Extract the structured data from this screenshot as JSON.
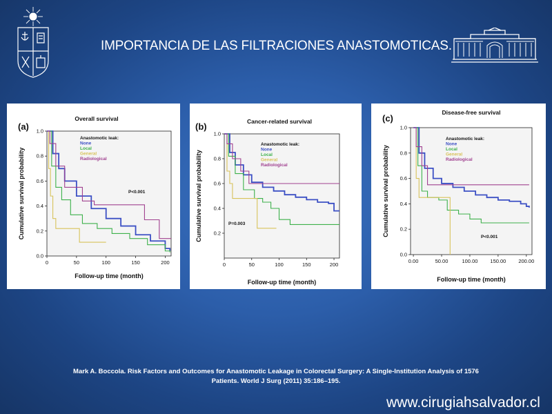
{
  "slide": {
    "title": "IMPORTANCIA DE LAS FILTRACIONES ANASTOMOTICAS.",
    "citation_line1": "Mark A. Boccola. Risk Factors and Outcomes for Anastomotic Leakage in Colorectal Surgery: A Single-Institution Analysis of 1576",
    "citation_line2": "Patients. World J Surg (2011) 35:186–195.",
    "website": "www.cirugiahsalvador.cl"
  },
  "colors": {
    "none": "#3b4fc4",
    "local": "#3cb04a",
    "general": "#d8c25a",
    "radiological": "#a0408f"
  },
  "chart_data": [
    {
      "type": "line",
      "panel_label": "(a)",
      "title": "Overall survival",
      "xlabel": "Follow-up time (month)",
      "ylabel": "Cumulative survival probability",
      "xlim": [
        0,
        210
      ],
      "ylim": [
        0,
        1.0
      ],
      "xticks": [
        0,
        50,
        100,
        150,
        200
      ],
      "xtick_labels": [
        "0",
        "50",
        "100",
        "150",
        "200"
      ],
      "yticks": [
        0.0,
        0.2,
        0.4,
        0.6,
        0.8,
        1.0
      ],
      "ytick_labels": [
        "0.0",
        "0.2",
        "0.4",
        "0.6",
        "0.8",
        "1.0"
      ],
      "legend_title": "Anastomotic leak:",
      "legend_position": "upper-center",
      "annotation": "P<0.001",
      "series": [
        {
          "name": "None",
          "x": [
            0,
            10,
            20,
            30,
            50,
            75,
            100,
            125,
            150,
            175,
            200,
            208
          ],
          "y": [
            1.0,
            0.82,
            0.7,
            0.6,
            0.48,
            0.38,
            0.3,
            0.24,
            0.17,
            0.12,
            0.06,
            0.04
          ]
        },
        {
          "name": "Local",
          "x": [
            0,
            8,
            15,
            25,
            40,
            60,
            85,
            110,
            140,
            170,
            200,
            208
          ],
          "y": [
            1.0,
            0.72,
            0.55,
            0.45,
            0.33,
            0.26,
            0.22,
            0.18,
            0.14,
            0.09,
            0.04,
            0.03
          ]
        },
        {
          "name": "General",
          "x": [
            0,
            3,
            6,
            10,
            15,
            35,
            55,
            70,
            100
          ],
          "y": [
            1.0,
            0.7,
            0.48,
            0.3,
            0.22,
            0.22,
            0.11,
            0.11,
            0.11
          ]
        },
        {
          "name": "Radiological",
          "x": [
            0,
            5,
            15,
            30,
            60,
            80,
            100,
            130,
            165,
            190,
            210
          ],
          "y": [
            1.0,
            0.9,
            0.72,
            0.55,
            0.44,
            0.41,
            0.41,
            0.41,
            0.29,
            0.14,
            0.14
          ]
        }
      ]
    },
    {
      "type": "line",
      "panel_label": "(b)",
      "title": "Cancer-related survival",
      "xlabel": "Follow-up time (month)",
      "ylabel": "Cumulative survival probability",
      "xlim": [
        0,
        210
      ],
      "ylim": [
        0.0,
        1.0
      ],
      "xticks": [
        0,
        50,
        100,
        150,
        200
      ],
      "xtick_labels": [
        "0",
        "50",
        "100",
        "150",
        "200"
      ],
      "yticks": [
        0.2,
        0.4,
        0.6,
        0.8,
        1.0
      ],
      "ytick_labels": [
        "0.2",
        "0.4",
        "0.6",
        "0.8",
        "1.0"
      ],
      "legend_title": "Anastomotic leak:",
      "legend_position": "upper-center",
      "annotation": "P=0.003",
      "series": [
        {
          "name": "None",
          "x": [
            0,
            10,
            20,
            35,
            50,
            70,
            90,
            110,
            130,
            150,
            170,
            190,
            200,
            210
          ],
          "y": [
            1.0,
            0.85,
            0.75,
            0.67,
            0.61,
            0.57,
            0.54,
            0.51,
            0.49,
            0.47,
            0.45,
            0.44,
            0.38,
            0.38
          ]
        },
        {
          "name": "Local",
          "x": [
            0,
            8,
            20,
            35,
            55,
            70,
            85,
            100,
            120,
            210
          ],
          "y": [
            1.0,
            0.82,
            0.68,
            0.55,
            0.48,
            0.45,
            0.4,
            0.31,
            0.27,
            0.27
          ]
        },
        {
          "name": "General",
          "x": [
            0,
            5,
            10,
            15,
            50,
            60,
            95
          ],
          "y": [
            1.0,
            0.7,
            0.6,
            0.48,
            0.48,
            0.24,
            0.24
          ]
        },
        {
          "name": "Radiological",
          "x": [
            0,
            5,
            15,
            30,
            45,
            210
          ],
          "y": [
            1.0,
            0.92,
            0.8,
            0.7,
            0.6,
            0.6
          ]
        }
      ]
    },
    {
      "type": "line",
      "panel_label": "(c)",
      "title": "Disease-free survival",
      "xlabel": "Follow-up time (month)",
      "ylabel": "Cumulative survival probability",
      "xlim": [
        -5,
        210
      ],
      "ylim": [
        0.0,
        1.0
      ],
      "xticks": [
        0,
        50,
        100,
        150,
        200
      ],
      "xtick_labels": [
        "0.00",
        "50.00",
        "100.00",
        "150.00",
        "200.00"
      ],
      "yticks": [
        0.0,
        0.2,
        0.4,
        0.6,
        0.8,
        1.0
      ],
      "ytick_labels": [
        "0.0",
        "0.2",
        "0.4",
        "0.6",
        "0.8",
        "1.0"
      ],
      "legend_title": "Anastomotic leak:",
      "legend_position": "upper-center",
      "annotation": "P<0.001",
      "series": [
        {
          "name": "None",
          "x": [
            0,
            10,
            20,
            35,
            50,
            70,
            90,
            110,
            130,
            150,
            170,
            190,
            200,
            205
          ],
          "y": [
            1.0,
            0.8,
            0.68,
            0.6,
            0.56,
            0.53,
            0.5,
            0.47,
            0.45,
            0.43,
            0.42,
            0.4,
            0.38,
            0.37
          ]
        },
        {
          "name": "Local",
          "x": [
            0,
            8,
            15,
            25,
            45,
            60,
            80,
            100,
            120,
            205
          ],
          "y": [
            1.0,
            0.7,
            0.5,
            0.45,
            0.43,
            0.35,
            0.32,
            0.28,
            0.25,
            0.25
          ]
        },
        {
          "name": "General",
          "x": [
            0,
            5,
            10,
            60,
            65,
            65
          ],
          "y": [
            1.0,
            0.6,
            0.45,
            0.45,
            0.45,
            0.0
          ]
        },
        {
          "name": "Radiological",
          "x": [
            0,
            5,
            15,
            25,
            205
          ],
          "y": [
            1.0,
            0.85,
            0.7,
            0.55,
            0.55
          ]
        }
      ]
    }
  ]
}
